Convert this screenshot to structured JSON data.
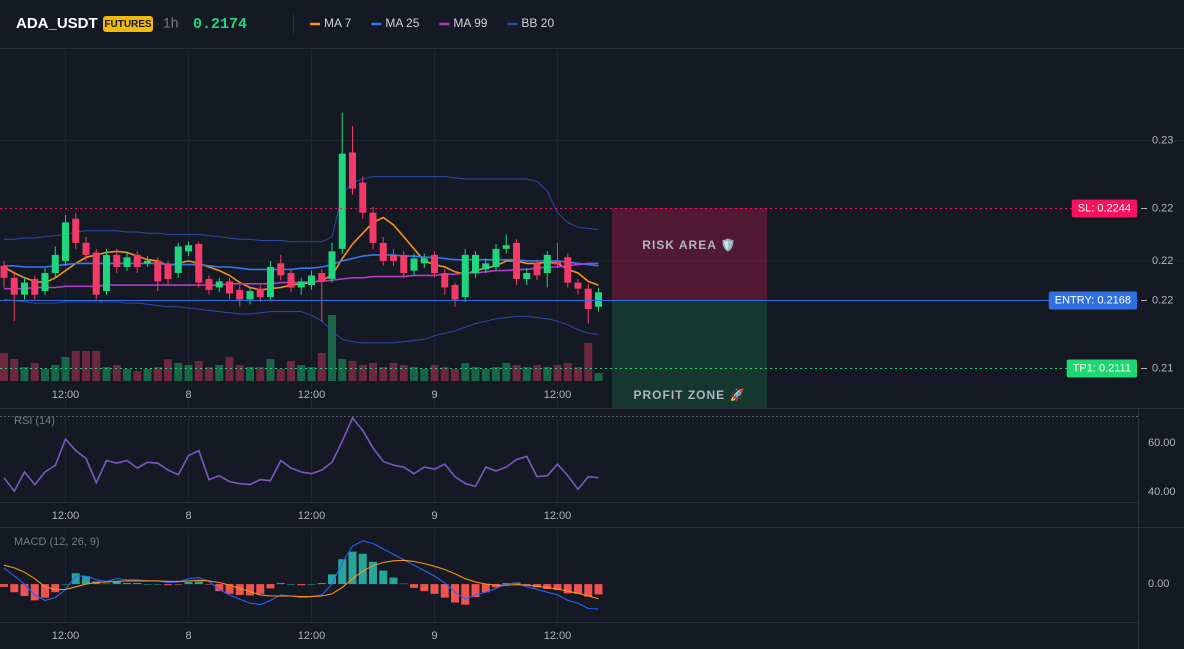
{
  "chart_data": [
    {
      "type": "candlestick",
      "title": "ADA_USDT",
      "badge": "FUTURES",
      "interval": "1h",
      "last": 0.2174,
      "up_color": "#1fd67e",
      "down_color": "#f23c67",
      "grid": true,
      "categories": [
        null,
        null,
        null,
        null,
        null,
        null,
        "12:00",
        null,
        null,
        null,
        null,
        null,
        null,
        null,
        null,
        null,
        null,
        null,
        "8",
        null,
        null,
        null,
        null,
        null,
        null,
        null,
        null,
        null,
        null,
        null,
        "12:00",
        null,
        null,
        null,
        null,
        null,
        null,
        null,
        null,
        null,
        null,
        null,
        "9",
        null,
        null,
        null,
        null,
        null,
        null,
        null,
        null,
        null,
        null,
        null,
        "12:00",
        null,
        null,
        null,
        null
      ],
      "open": [
        0.2196,
        0.2186,
        0.2172,
        0.2185,
        0.2175,
        0.219,
        0.22,
        0.2235,
        0.2215,
        0.2207,
        0.2175,
        0.2205,
        0.2195,
        0.2205,
        0.2198,
        0.22,
        0.2198,
        0.219,
        0.2208,
        0.2214,
        0.2185,
        0.2178,
        0.2183,
        0.2176,
        0.2168,
        0.2177,
        0.217,
        0.2198,
        0.219,
        0.2178,
        0.218,
        0.219,
        0.2185,
        0.221,
        0.229,
        0.2265,
        0.224,
        0.2215,
        0.2205,
        0.2205,
        0.2192,
        0.2198,
        0.2205,
        0.219,
        0.218,
        0.217,
        0.219,
        0.2193,
        0.2195,
        0.221,
        0.2215,
        0.2185,
        0.2198,
        0.219,
        0.22,
        0.2203,
        0.2182,
        0.2177,
        0.2162
      ],
      "high": [
        0.22,
        0.219,
        0.2186,
        0.2188,
        0.2194,
        0.2212,
        0.2238,
        0.224,
        0.222,
        0.221,
        0.221,
        0.221,
        0.2208,
        0.2208,
        0.2204,
        0.2203,
        0.22,
        0.2215,
        0.2216,
        0.2216,
        0.2188,
        0.2186,
        0.2186,
        0.218,
        0.2178,
        0.218,
        0.22,
        0.2205,
        0.2193,
        0.2186,
        0.2192,
        0.2193,
        0.2215,
        0.2323,
        0.2312,
        0.227,
        0.2245,
        0.222,
        0.221,
        0.2208,
        0.2206,
        0.2206,
        0.2208,
        0.2193,
        0.2182,
        0.221,
        0.2208,
        0.2202,
        0.2214,
        0.2222,
        0.2218,
        0.2194,
        0.2201,
        0.2208,
        0.2215,
        0.2206,
        0.2185,
        0.2181,
        0.2178
      ],
      "low": [
        0.2178,
        0.215,
        0.2168,
        0.2168,
        0.2172,
        0.2186,
        0.2196,
        0.221,
        0.22,
        0.2168,
        0.2172,
        0.219,
        0.2192,
        0.219,
        0.2195,
        0.2175,
        0.218,
        0.2186,
        0.2204,
        0.2178,
        0.2172,
        0.2174,
        0.2168,
        0.2162,
        0.2164,
        0.2166,
        0.2168,
        0.2184,
        0.2174,
        0.2172,
        0.2176,
        0.215,
        0.2182,
        0.2206,
        0.2255,
        0.2235,
        0.221,
        0.2196,
        0.2196,
        0.2186,
        0.2188,
        0.2194,
        0.2186,
        0.2172,
        0.2162,
        0.2166,
        0.2186,
        0.219,
        0.2192,
        0.2206,
        0.218,
        0.218,
        0.2184,
        0.2178,
        0.2194,
        0.2178,
        0.2172,
        0.2148,
        0.2158
      ],
      "close": [
        0.2186,
        0.2172,
        0.2182,
        0.2172,
        0.219,
        0.2205,
        0.2232,
        0.2215,
        0.2205,
        0.2172,
        0.2205,
        0.2195,
        0.2203,
        0.2195,
        0.22,
        0.2183,
        0.2185,
        0.2212,
        0.2213,
        0.2182,
        0.2176,
        0.2183,
        0.2173,
        0.2168,
        0.2175,
        0.217,
        0.2195,
        0.2188,
        0.2178,
        0.2183,
        0.2188,
        0.2183,
        0.2208,
        0.2289,
        0.226,
        0.224,
        0.2215,
        0.22,
        0.22,
        0.219,
        0.2202,
        0.2202,
        0.219,
        0.2178,
        0.2168,
        0.2205,
        0.2205,
        0.2198,
        0.221,
        0.2213,
        0.2185,
        0.219,
        0.2188,
        0.2205,
        0.2197,
        0.2182,
        0.2177,
        0.216,
        0.2174
      ],
      "volume": [
        28,
        22,
        14,
        18,
        12,
        16,
        24,
        30,
        30,
        30,
        14,
        16,
        12,
        10,
        12,
        14,
        22,
        18,
        16,
        20,
        14,
        16,
        24,
        16,
        14,
        14,
        22,
        12,
        20,
        16,
        14,
        28,
        66,
        22,
        20,
        16,
        18,
        14,
        18,
        16,
        14,
        12,
        16,
        14,
        12,
        18,
        14,
        12,
        14,
        18,
        16,
        14,
        16,
        14,
        16,
        18,
        14,
        38,
        8
      ],
      "series": [
        {
          "name": "MA 7",
          "color": "#f7931a",
          "values": [
            0.2195,
            0.219,
            0.2186,
            0.2183,
            0.2182,
            0.2186,
            0.2192,
            0.2198,
            0.2203,
            0.2205,
            0.2207,
            0.2208,
            0.2207,
            0.2204,
            0.2201,
            0.22,
            0.2196,
            0.2198,
            0.22,
            0.2198,
            0.2195,
            0.2192,
            0.2188,
            0.2182,
            0.2178,
            0.2176,
            0.2177,
            0.2178,
            0.218,
            0.2181,
            0.2182,
            0.2184,
            0.2188,
            0.2202,
            0.2214,
            0.2223,
            0.2232,
            0.2236,
            0.223,
            0.222,
            0.221,
            0.22,
            0.2197,
            0.2195,
            0.2191,
            0.2189,
            0.2192,
            0.2194,
            0.2196,
            0.22,
            0.22,
            0.2198,
            0.2198,
            0.2199,
            0.2198,
            0.2193,
            0.219,
            0.2183,
            0.218
          ]
        },
        {
          "name": "MA 25",
          "color": "#2f7bf0",
          "values": [
            0.2196,
            0.2196,
            0.2195,
            0.2195,
            0.2195,
            0.2196,
            0.2197,
            0.2198,
            0.2198,
            0.2198,
            0.2198,
            0.2198,
            0.2198,
            0.2198,
            0.2198,
            0.2198,
            0.2197,
            0.2197,
            0.2197,
            0.2197,
            0.2196,
            0.2195,
            0.2195,
            0.2194,
            0.2193,
            0.2193,
            0.2193,
            0.2193,
            0.2193,
            0.2194,
            0.2194,
            0.2195,
            0.2197,
            0.22,
            0.2202,
            0.2204,
            0.2205,
            0.2205,
            0.2205,
            0.2204,
            0.2204,
            0.2203,
            0.2203,
            0.2202,
            0.2201,
            0.2201,
            0.2201,
            0.2201,
            0.2201,
            0.2201,
            0.2201,
            0.22,
            0.22,
            0.22,
            0.22,
            0.2199,
            0.2198,
            0.2197,
            0.2196
          ]
        },
        {
          "name": "MA 99",
          "color": "#b03cc8",
          "values": [
            0.2177,
            0.2177,
            0.2177,
            0.2178,
            0.2178,
            0.2178,
            0.2179,
            0.2179,
            0.2179,
            0.2179,
            0.218,
            0.218,
            0.218,
            0.218,
            0.218,
            0.218,
            0.218,
            0.218,
            0.218,
            0.218,
            0.218,
            0.218,
            0.2181,
            0.2181,
            0.2181,
            0.2181,
            0.2181,
            0.2182,
            0.2182,
            0.2182,
            0.2183,
            0.2183,
            0.2184,
            0.2185,
            0.2186,
            0.2186,
            0.2187,
            0.2187,
            0.2187,
            0.2187,
            0.2188,
            0.2188,
            0.2188,
            0.2189,
            0.2189,
            0.219,
            0.219,
            0.2191,
            0.2192,
            0.2192,
            0.2193,
            0.2193,
            0.2194,
            0.2195,
            0.2195,
            0.2196,
            0.2197,
            0.2198,
            0.2198
          ]
        },
        {
          "name": "BB 20",
          "color": "#2b4aa8",
          "upper": [
            0.2218,
            0.2218,
            0.2219,
            0.2219,
            0.222,
            0.2221,
            0.2222,
            0.2224,
            0.2225,
            0.2225,
            0.2225,
            0.2225,
            0.2224,
            0.2224,
            0.2223,
            0.2223,
            0.2222,
            0.2222,
            0.2222,
            0.2222,
            0.2221,
            0.222,
            0.2219,
            0.2218,
            0.2218,
            0.2217,
            0.2217,
            0.2217,
            0.2216,
            0.2216,
            0.2216,
            0.2216,
            0.222,
            0.2255,
            0.2265,
            0.2268,
            0.227,
            0.227,
            0.227,
            0.227,
            0.227,
            0.227,
            0.227,
            0.227,
            0.2269,
            0.2268,
            0.2268,
            0.2268,
            0.2268,
            0.2268,
            0.2268,
            0.2268,
            0.2266,
            0.2258,
            0.224,
            0.2232,
            0.2228,
            0.2227,
            0.2226
          ],
          "lower": [
            0.2168,
            0.2167,
            0.2166,
            0.2165,
            0.2165,
            0.2165,
            0.2166,
            0.2166,
            0.2166,
            0.2166,
            0.2166,
            0.2166,
            0.2165,
            0.2165,
            0.2164,
            0.2163,
            0.2162,
            0.2162,
            0.2161,
            0.216,
            0.2159,
            0.2158,
            0.2157,
            0.2156,
            0.2156,
            0.2157,
            0.2158,
            0.2158,
            0.2158,
            0.2158,
            0.2155,
            0.215,
            0.2142,
            0.2135,
            0.2133,
            0.2132,
            0.2132,
            0.2132,
            0.2132,
            0.2133,
            0.2134,
            0.2135,
            0.2138,
            0.214,
            0.2142,
            0.2145,
            0.2148,
            0.215,
            0.2152,
            0.2153,
            0.2154,
            0.2154,
            0.2153,
            0.2152,
            0.215,
            0.2147,
            0.2143,
            0.214,
            0.2139
          ]
        }
      ],
      "ylim": [
        0.2078,
        0.2375
      ],
      "yticks": [
        0.22,
        0.23
      ],
      "levels": [
        {
          "label": "SL: 0.2244",
          "value": 0.2244,
          "axis_label": "0.22",
          "color": "#f5135d",
          "style": "dotted"
        },
        {
          "label": "ENTRY: 0.2168",
          "value": 0.2168,
          "axis_label": "0.22",
          "color": "#2f6fe0",
          "style": "solid"
        },
        {
          "label": "TP1: 0.2111",
          "value": 0.2111,
          "axis_label": "0.21",
          "color": "#1ed76f",
          "style": "dotted"
        }
      ],
      "zones": [
        {
          "label": "RISK AREA 🛡️",
          "color": "#f0185a"
        },
        {
          "label": "PROFIT ZONE 🚀",
          "color": "#1ed76f"
        }
      ]
    },
    {
      "type": "line",
      "title": "RSI (14)",
      "color": "#7e57c2",
      "values": [
        45.9,
        40.4,
        48.2,
        43.1,
        48.2,
        50.9,
        61.6,
        56.9,
        53.7,
        43.9,
        52.9,
        51.8,
        52.9,
        49.8,
        52.2,
        51.8,
        49.0,
        47.1,
        54.9,
        56.9,
        45.1,
        46.7,
        44.3,
        43.5,
        43.1,
        45.1,
        44.7,
        52.9,
        49.8,
        48.2,
        47.5,
        49.0,
        52.2,
        60.8,
        70.2,
        65.1,
        58.0,
        52.5,
        51.0,
        50.2,
        47.5,
        50.2,
        49.4,
        51.4,
        46.3,
        43.5,
        42.4,
        50.2,
        48.6,
        50.2,
        53.3,
        54.5,
        46.3,
        46.7,
        51.4,
        46.7,
        41.2,
        46.3,
        45.9
      ],
      "ylim": [
        36,
        71
      ],
      "yticks": [
        {
          "value": 60,
          "label": "60.00"
        },
        {
          "value": 40,
          "label": "40.00"
        }
      ]
    },
    {
      "type": "macd",
      "title": "MACD (12, 26, 9)",
      "series": [
        {
          "color": "#2962ff",
          "values": [
            0.0003,
            0.00015,
            0,
            -0.0002,
            -0.0003,
            -0.00025,
            -0.0001,
            0.00015,
            0.00015,
            8e-05,
            5e-05,
            0.0001,
            8e-05,
            8e-05,
            6e-05,
            6e-05,
            3e-05,
            4e-05,
            0.0001,
            0.00012,
            5e-05,
            -0.0001,
            -0.0002,
            -0.00028,
            -0.00035,
            -0.00038,
            -0.0003,
            -0.0002,
            -0.00022,
            -0.00025,
            -0.00023,
            -0.0002,
            0,
            0.0004,
            0.0007,
            0.0008,
            0.00075,
            0.00065,
            0.00055,
            0.00045,
            0.00035,
            0.00025,
            0.00015,
            2e-05,
            -0.00015,
            -0.00028,
            -0.0002,
            -0.00015,
            -8e-05,
            0,
            2e-05,
            -5e-05,
            -0.0001,
            -0.00015,
            -0.0002,
            -0.0003,
            -0.00035,
            -0.00045,
            -0.00046
          ]
        },
        {
          "color": "#f7931a",
          "values": [
            0.00035,
            0.0003,
            0.00022,
            0.0001,
            -5e-05,
            -0.0001,
            -0.0001,
            -5e-05,
            0,
            3e-05,
            4e-05,
            5e-05,
            6e-05,
            6e-05,
            6e-05,
            6e-05,
            5e-05,
            5e-05,
            6e-05,
            7e-05,
            6e-05,
            3e-05,
            -2e-05,
            -8e-05,
            -0.00014,
            -0.0002,
            -0.00022,
            -0.00022,
            -0.00022,
            -0.00023,
            -0.00023,
            -0.00022,
            -0.00018,
            -6e-05,
            0.0001,
            0.00024,
            0.00034,
            0.0004,
            0.00043,
            0.00044,
            0.00042,
            0.00038,
            0.00033,
            0.00027,
            0.00019,
            0.0001,
            4e-05,
            0,
            -2e-05,
            -2e-05,
            -1e-05,
            -2e-05,
            -4e-05,
            -6e-05,
            -9e-05,
            -0.00013,
            -0.00017,
            -0.00022,
            -0.00027
          ]
        }
      ],
      "histogram": {
        "up_color": "#26a69a",
        "down_color": "#ef5350",
        "values": [
          -5e-05,
          -0.00015,
          -0.00022,
          -0.0003,
          -0.00025,
          -0.00015,
          0,
          0.0002,
          0.00015,
          5e-05,
          1e-05,
          5e-05,
          2e-05,
          2e-05,
          0,
          0,
          -2e-05,
          -1e-05,
          4e-05,
          5e-05,
          -1e-05,
          -0.00013,
          -0.00018,
          -0.0002,
          -0.00021,
          -0.00018,
          -8e-05,
          2e-05,
          0,
          -2e-05,
          0,
          2e-05,
          0.00018,
          0.00046,
          0.0006,
          0.00056,
          0.00041,
          0.00025,
          0.00012,
          1e-05,
          -7e-05,
          -0.00013,
          -0.00018,
          -0.00025,
          -0.00034,
          -0.00038,
          -0.00024,
          -0.00015,
          -6e-05,
          2e-05,
          3e-05,
          -3e-05,
          -6e-05,
          -9e-05,
          -0.00011,
          -0.00017,
          -0.00018,
          -0.00023,
          -0.00019
        ]
      },
      "ylim": [
        -0.0007,
        0.001
      ],
      "yticks": [
        {
          "value": 0,
          "label": "0.00"
        }
      ]
    }
  ]
}
